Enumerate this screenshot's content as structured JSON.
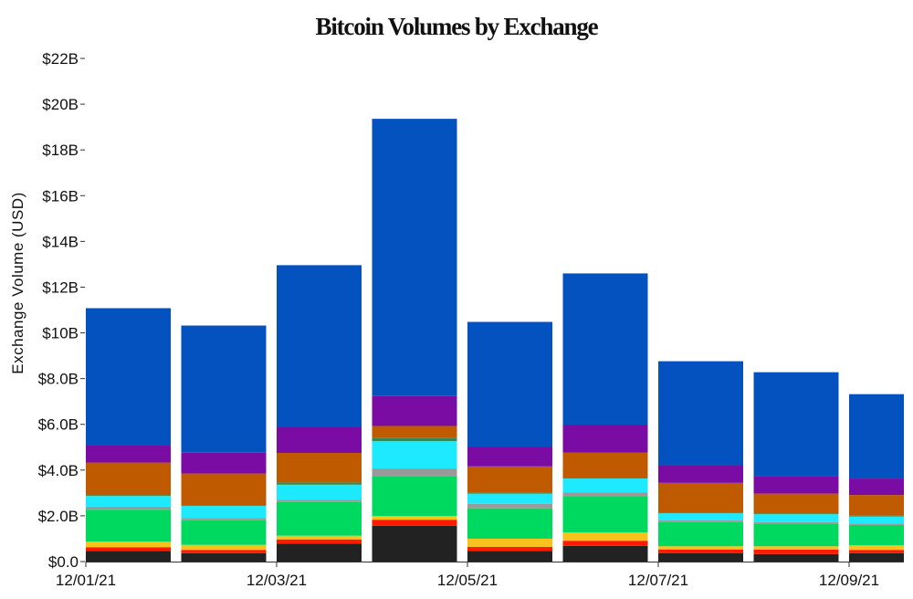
{
  "chart_data": {
    "type": "bar",
    "stacked": true,
    "title": "Bitcoin Volumes by Exchange",
    "xlabel": "",
    "ylabel": "Exchange Volume (USD)",
    "ylim": [
      0,
      22
    ],
    "y_unit": "billion USD",
    "grid": false,
    "legend": "none",
    "yticks": [
      {
        "value": 0,
        "label": "$0.0"
      },
      {
        "value": 2,
        "label": "$2.0B"
      },
      {
        "value": 4,
        "label": "$4.0B"
      },
      {
        "value": 6,
        "label": "$6.0B"
      },
      {
        "value": 8,
        "label": "$8.0B"
      },
      {
        "value": 10,
        "label": "$10B"
      },
      {
        "value": 12,
        "label": "$12B"
      },
      {
        "value": 14,
        "label": "$14B"
      },
      {
        "value": 16,
        "label": "$16B"
      },
      {
        "value": 18,
        "label": "$18B"
      },
      {
        "value": 20,
        "label": "$20B"
      },
      {
        "value": 22,
        "label": "$22B"
      }
    ],
    "xticks": [
      "12/01/21",
      "12/03/21",
      "12/05/21",
      "12/07/21",
      "12/09/21"
    ],
    "categories": [
      "12/01/21",
      "12/02/21",
      "12/03/21",
      "12/04/21",
      "12/05/21",
      "12/06/21",
      "12/07/21",
      "12/08/21",
      "12/09/21"
    ],
    "series": [
      {
        "color": "#222222",
        "values": [
          0.47,
          0.37,
          0.79,
          1.56,
          0.47,
          0.69,
          0.36,
          0.33,
          0.37
        ]
      },
      {
        "color": "#ff1a00",
        "values": [
          0.16,
          0.14,
          0.18,
          0.27,
          0.17,
          0.22,
          0.17,
          0.19,
          0.14
        ]
      },
      {
        "color": "#f7c21b",
        "values": [
          0.24,
          0.22,
          0.16,
          0.16,
          0.36,
          0.36,
          0.14,
          0.15,
          0.2
        ]
      },
      {
        "color": "#00d95f",
        "values": [
          1.4,
          1.07,
          1.47,
          1.74,
          1.33,
          1.6,
          1.06,
          1.0,
          0.89
        ]
      },
      {
        "color": "#9a9a9a",
        "values": [
          0.13,
          0.11,
          0.11,
          0.34,
          0.19,
          0.16,
          0.07,
          0.06,
          0.07
        ]
      },
      {
        "color": "#1de9ff",
        "values": [
          0.47,
          0.52,
          0.65,
          1.2,
          0.45,
          0.6,
          0.31,
          0.34,
          0.3
        ]
      },
      {
        "color": "#2e8b57",
        "values": [
          0.04,
          0.04,
          0.1,
          0.13,
          0.04,
          0.04,
          0.04,
          0.04,
          0.04
        ]
      },
      {
        "color": "#c05a00",
        "values": [
          1.42,
          1.38,
          1.29,
          0.53,
          1.15,
          1.1,
          1.29,
          0.86,
          0.9
        ]
      },
      {
        "color": "#7a0ca3",
        "values": [
          0.74,
          0.91,
          1.14,
          1.31,
          0.87,
          1.22,
          0.79,
          0.76,
          0.72
        ]
      },
      {
        "color": "#0452c0",
        "values": [
          6.01,
          5.56,
          7.07,
          12.12,
          5.45,
          6.61,
          4.53,
          4.55,
          3.69
        ]
      }
    ]
  }
}
